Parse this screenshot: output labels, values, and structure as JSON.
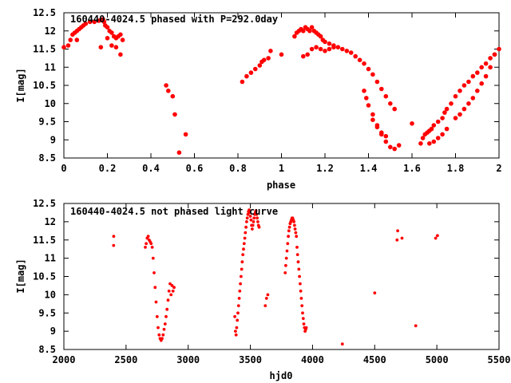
{
  "chart_data": [
    {
      "type": "scatter",
      "title": "160440-4024.5 phased with P=292.0day",
      "xlabel": "phase",
      "ylabel": "I[mag]",
      "xlim": [
        0,
        2
      ],
      "ylim": [
        12.5,
        8.5
      ],
      "y_inverted": true,
      "x_ticks": [
        "0",
        "0.2",
        "0.4",
        "0.6",
        "0.8",
        "1",
        "1.2",
        "1.4",
        "1.6",
        "1.8",
        "2"
      ],
      "y_ticks": [
        "8.5",
        "9",
        "9.5",
        "10",
        "10.5",
        "11",
        "11.5",
        "12",
        "12.5"
      ],
      "grid": false,
      "marker_color": "#ff0000",
      "series": [
        {
          "x": [
            0.0,
            0.02,
            0.03,
            0.04,
            0.05,
            0.06,
            0.07,
            0.08,
            0.09,
            0.1,
            0.12,
            0.14,
            0.16,
            0.17,
            0.18,
            0.185,
            0.19,
            0.2,
            0.21,
            0.22,
            0.23,
            0.24,
            0.25,
            0.26,
            0.27,
            0.06,
            0.17,
            0.2,
            0.22,
            0.24,
            0.26,
            0.47,
            0.48,
            0.5,
            0.51,
            0.53,
            0.56,
            0.82,
            0.84,
            0.86,
            0.88,
            0.9,
            0.91,
            0.92,
            0.94,
            0.95,
            1.0,
            1.06,
            1.07,
            1.08,
            1.09,
            1.1,
            1.11,
            1.12,
            1.13,
            1.14,
            1.15,
            1.16,
            1.17,
            1.18,
            1.19,
            1.2,
            1.22,
            1.24,
            1.26,
            1.28,
            1.3,
            1.32,
            1.34,
            1.36,
            1.38,
            1.4,
            1.42,
            1.44,
            1.46,
            1.48,
            1.5,
            1.52,
            1.1,
            1.12,
            1.14,
            1.16,
            1.18,
            1.2,
            1.22,
            1.24,
            1.38,
            1.39,
            1.4,
            1.42,
            1.44,
            1.46,
            1.48,
            1.5,
            1.52,
            1.54,
            1.42,
            1.44,
            1.46,
            1.48,
            1.6,
            1.64,
            1.65,
            1.66,
            1.67,
            1.68,
            1.69,
            1.7,
            1.72,
            1.74,
            1.75,
            1.76,
            1.78,
            1.8,
            1.82,
            1.84,
            1.86,
            1.88,
            1.9,
            1.92,
            1.94,
            1.96,
            1.98,
            2.0,
            1.68,
            1.7,
            1.72,
            1.74,
            1.76,
            1.8,
            1.82,
            1.84,
            1.86,
            1.88,
            1.9,
            1.92,
            1.94,
            1.96,
            1.98
          ],
          "y": [
            11.55,
            11.6,
            11.75,
            11.9,
            11.95,
            12.0,
            12.05,
            12.1,
            12.15,
            12.2,
            12.25,
            12.25,
            12.28,
            12.3,
            12.32,
            12.25,
            12.15,
            12.1,
            12.0,
            11.95,
            11.85,
            11.8,
            11.85,
            11.9,
            11.75,
            11.75,
            11.55,
            11.8,
            11.6,
            11.55,
            11.35,
            10.5,
            10.35,
            10.2,
            9.7,
            8.65,
            9.15,
            10.6,
            10.75,
            10.85,
            10.95,
            11.05,
            11.15,
            11.2,
            11.25,
            11.45,
            11.35,
            11.85,
            11.95,
            12.0,
            12.05,
            12.0,
            12.1,
            12.05,
            12.0,
            12.1,
            12.0,
            11.95,
            11.9,
            11.85,
            11.75,
            11.7,
            11.65,
            11.6,
            11.55,
            11.5,
            11.45,
            11.4,
            11.3,
            11.2,
            11.1,
            10.95,
            10.8,
            10.6,
            10.4,
            10.2,
            10.0,
            9.85,
            11.3,
            11.35,
            11.5,
            11.55,
            11.5,
            11.45,
            11.5,
            11.55,
            10.35,
            10.15,
            9.95,
            9.7,
            9.4,
            9.15,
            8.95,
            8.8,
            8.75,
            8.85,
            9.55,
            9.35,
            9.2,
            9.1,
            9.45,
            8.9,
            9.05,
            9.15,
            9.2,
            9.25,
            9.3,
            9.4,
            9.5,
            9.6,
            9.75,
            9.85,
            10.0,
            10.2,
            10.35,
            10.5,
            10.6,
            10.75,
            10.85,
            11.0,
            11.1,
            11.25,
            11.35,
            11.5,
            8.9,
            8.95,
            9.05,
            9.15,
            9.3,
            9.6,
            9.7,
            9.85,
            10.0,
            10.15,
            10.35,
            10.55,
            10.75,
            11.0,
            11.35
          ]
        }
      ]
    },
    {
      "type": "scatter",
      "title": "160440-4024.5 not phased light curve",
      "xlabel": "hjd0",
      "ylabel": "I[mag]",
      "xlim": [
        2000,
        5500
      ],
      "ylim": [
        12.5,
        8.5
      ],
      "y_inverted": true,
      "x_ticks": [
        "2000",
        "2500",
        "3000",
        "3500",
        "4000",
        "4500",
        "5000",
        "5500"
      ],
      "y_ticks": [
        "8.5",
        "9",
        "9.5",
        "10",
        "10.5",
        "11",
        "11.5",
        "12",
        "12.5"
      ],
      "grid": false,
      "marker_color": "#ff0000",
      "series": [
        {
          "x": [
            2400,
            2401,
            2655,
            2662,
            2670,
            2678,
            2686,
            2694,
            2702,
            2710,
            2718,
            2726,
            2734,
            2742,
            2750,
            2758,
            2766,
            2774,
            2782,
            2790,
            2798,
            2806,
            2814,
            2822,
            2830,
            2838,
            2846,
            2854,
            2862,
            2870,
            2878,
            2886,
            3375,
            3380,
            3385,
            3390,
            3395,
            3400,
            3405,
            3410,
            3415,
            3420,
            3425,
            3430,
            3435,
            3440,
            3445,
            3450,
            3455,
            3460,
            3465,
            3470,
            3475,
            3480,
            3485,
            3490,
            3495,
            3500,
            3505,
            3510,
            3515,
            3520,
            3525,
            3530,
            3535,
            3540,
            3545,
            3550,
            3555,
            3560,
            3565,
            3570,
            3620,
            3630,
            3640,
            3780,
            3785,
            3790,
            3795,
            3800,
            3805,
            3810,
            3815,
            3820,
            3825,
            3830,
            3835,
            3840,
            3845,
            3850,
            3855,
            3860,
            3865,
            3870,
            3875,
            3880,
            3885,
            3890,
            3895,
            3900,
            3905,
            3910,
            3915,
            3920,
            3925,
            3930,
            3935,
            3940,
            3945,
            3950,
            4240,
            4500,
            4680,
            4685,
            4720,
            4830,
            4990,
            5005
          ],
          "y": [
            11.35,
            11.6,
            11.3,
            11.4,
            11.55,
            11.6,
            11.5,
            11.45,
            11.4,
            11.3,
            11.0,
            10.6,
            10.2,
            9.8,
            9.4,
            9.1,
            8.9,
            8.8,
            8.75,
            8.8,
            8.9,
            9.05,
            9.2,
            9.4,
            9.6,
            9.85,
            10.1,
            10.3,
            10.0,
            10.25,
            10.1,
            10.2,
            9.4,
            9.0,
            8.9,
            9.1,
            9.3,
            9.5,
            9.7,
            9.9,
            10.1,
            10.3,
            10.5,
            10.7,
            10.9,
            11.1,
            11.25,
            11.4,
            11.55,
            11.7,
            11.85,
            12.0,
            12.1,
            12.2,
            12.28,
            12.32,
            12.25,
            12.15,
            12.05,
            11.9,
            11.8,
            11.9,
            12.0,
            12.1,
            12.2,
            12.25,
            12.3,
            12.2,
            12.1,
            12.0,
            11.9,
            11.85,
            9.7,
            9.9,
            10.0,
            10.6,
            10.8,
            11.0,
            11.2,
            11.4,
            11.6,
            11.75,
            11.85,
            11.95,
            12.0,
            12.05,
            12.1,
            12.1,
            12.05,
            12.0,
            11.9,
            11.8,
            11.7,
            11.6,
            11.3,
            11.1,
            10.9,
            10.7,
            10.5,
            10.3,
            10.1,
            9.9,
            9.7,
            9.5,
            9.35,
            9.2,
            9.1,
            9.0,
            9.05,
            9.1,
            8.65,
            10.05,
            11.5,
            11.75,
            11.55,
            9.15,
            11.55,
            11.62
          ]
        }
      ]
    }
  ]
}
